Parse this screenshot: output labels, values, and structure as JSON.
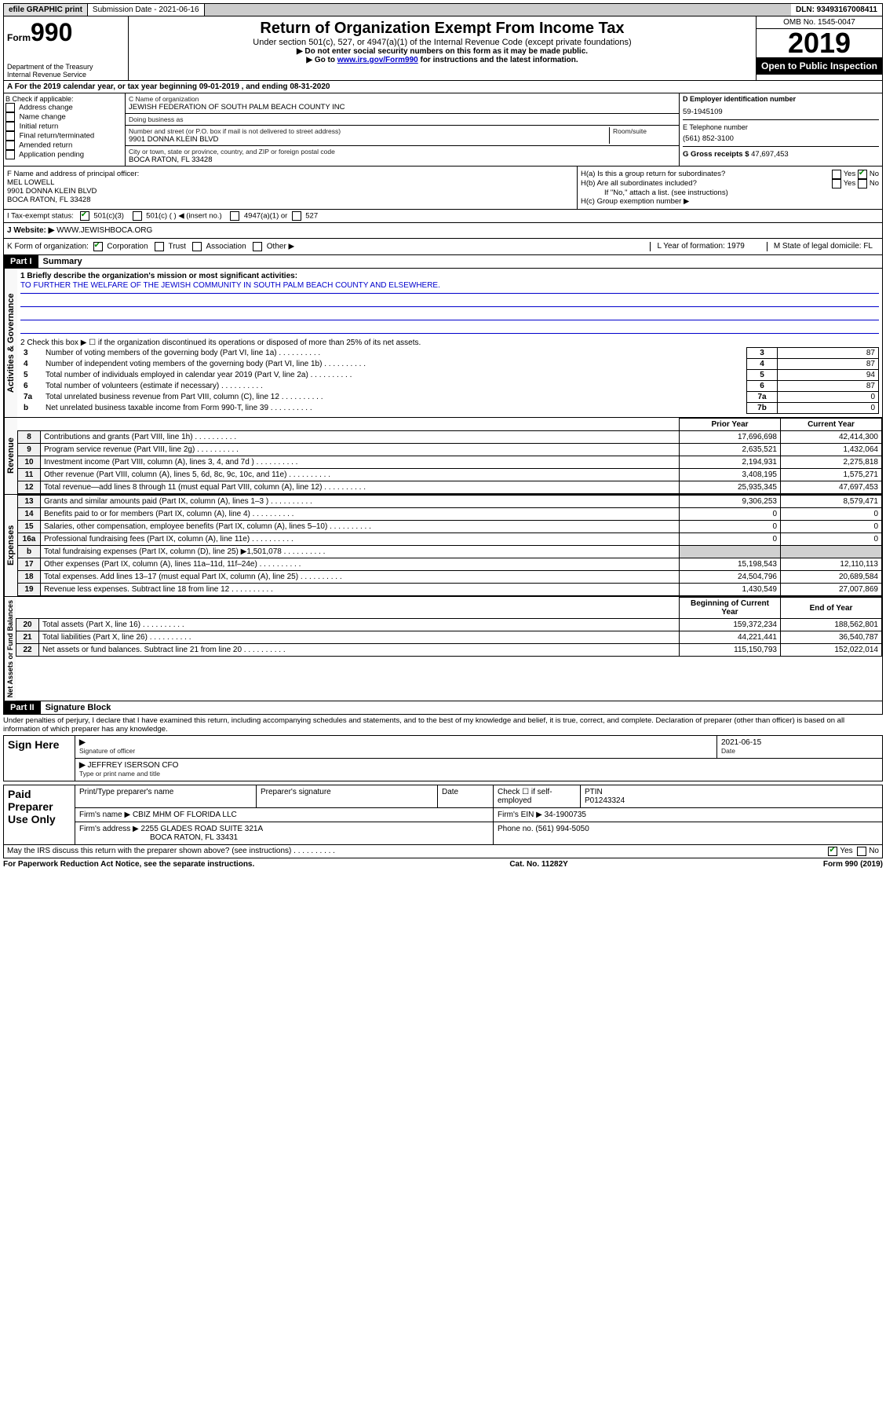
{
  "topbar": {
    "efile": "efile GRAPHIC print",
    "submission": "Submission Date - 2021-06-16",
    "dln": "DLN: 93493167008411"
  },
  "header": {
    "form_prefix": "Form",
    "form_number": "990",
    "dept": "Department of the Treasury\nInternal Revenue Service",
    "title": "Return of Organization Exempt From Income Tax",
    "sub": "Under section 501(c), 527, or 4947(a)(1) of the Internal Revenue Code (except private foundations)",
    "note1": "▶ Do not enter social security numbers on this form as it may be made public.",
    "note2_pre": "▶ Go to ",
    "note2_link": "www.irs.gov/Form990",
    "note2_post": " for instructions and the latest information.",
    "omb": "OMB No. 1545-0047",
    "year": "2019",
    "inspection": "Open to Public Inspection"
  },
  "section_a": "A For the 2019 calendar year, or tax year beginning 09-01-2019   , and ending 08-31-2020",
  "box_b": {
    "label": "B Check if applicable:",
    "items": [
      "Address change",
      "Name change",
      "Initial return",
      "Final return/terminated",
      "Amended return",
      "Application pending"
    ]
  },
  "box_c": {
    "name_label": "C Name of organization",
    "name": "JEWISH FEDERATION OF SOUTH PALM BEACH COUNTY INC",
    "dba_label": "Doing business as",
    "dba": "",
    "street_label": "Number and street (or P.O. box if mail is not delivered to street address)",
    "room_label": "Room/suite",
    "street": "9901 DONNA KLEIN BLVD",
    "city_label": "City or town, state or province, country, and ZIP or foreign postal code",
    "city": "BOCA RATON, FL  33428"
  },
  "box_d": {
    "label": "D Employer identification number",
    "value": "59-1945109"
  },
  "box_e": {
    "label": "E Telephone number",
    "value": "(561) 852-3100"
  },
  "box_g": {
    "label": "G Gross receipts $",
    "value": "47,697,453"
  },
  "box_f": {
    "label": "F  Name and address of principal officer:",
    "name": "MEL LOWELL",
    "street": "9901 DONNA KLEIN BLVD",
    "city": "BOCA RATON, FL  33428"
  },
  "box_h": {
    "a": "H(a)  Is this a group return for subordinates?",
    "a_yes": "Yes",
    "a_no": "No",
    "b": "H(b)  Are all subordinates included?",
    "b_note": "If \"No,\" attach a list. (see instructions)",
    "c": "H(c)  Group exemption number ▶"
  },
  "tax_status": {
    "label": "I   Tax-exempt status:",
    "opt1": "501(c)(3)",
    "opt2": "501(c) (  ) ◀ (insert no.)",
    "opt3": "4947(a)(1) or",
    "opt4": "527"
  },
  "website": {
    "label": "J   Website: ▶",
    "value": "WWW.JEWISHBOCA.ORG"
  },
  "line_k": {
    "label": "K Form of organization:",
    "opts": [
      "Corporation",
      "Trust",
      "Association",
      "Other ▶"
    ],
    "l": "L Year of formation: 1979",
    "m": "M State of legal domicile: FL"
  },
  "part1": {
    "header": "Part I",
    "title": "Summary",
    "q1": "1  Briefly describe the organization's mission or most significant activities:",
    "mission": "TO FURTHER THE WELFARE OF THE JEWISH COMMUNITY IN SOUTH PALM BEACH COUNTY AND ELSEWHERE.",
    "q2": "2   Check this box ▶ ☐  if the organization discontinued its operations or disposed of more than 25% of its net assets.",
    "rows_gov": [
      {
        "n": "3",
        "t": "Number of voting members of the governing body (Part VI, line 1a)",
        "k": "3",
        "v": "87"
      },
      {
        "n": "4",
        "t": "Number of independent voting members of the governing body (Part VI, line 1b)",
        "k": "4",
        "v": "87"
      },
      {
        "n": "5",
        "t": "Total number of individuals employed in calendar year 2019 (Part V, line 2a)",
        "k": "5",
        "v": "94"
      },
      {
        "n": "6",
        "t": "Total number of volunteers (estimate if necessary)",
        "k": "6",
        "v": "87"
      },
      {
        "n": "7a",
        "t": "Total unrelated business revenue from Part VIII, column (C), line 12",
        "k": "7a",
        "v": "0"
      },
      {
        "n": "b",
        "t": "Net unrelated business taxable income from Form 990-T, line 39",
        "k": "7b",
        "v": "0"
      }
    ],
    "prior_year": "Prior Year",
    "current_year": "Current Year",
    "rows_rev": [
      {
        "n": "8",
        "t": "Contributions and grants (Part VIII, line 1h)",
        "p": "17,696,698",
        "c": "42,414,300"
      },
      {
        "n": "9",
        "t": "Program service revenue (Part VIII, line 2g)",
        "p": "2,635,521",
        "c": "1,432,064"
      },
      {
        "n": "10",
        "t": "Investment income (Part VIII, column (A), lines 3, 4, and 7d )",
        "p": "2,194,931",
        "c": "2,275,818"
      },
      {
        "n": "11",
        "t": "Other revenue (Part VIII, column (A), lines 5, 6d, 8c, 9c, 10c, and 11e)",
        "p": "3,408,195",
        "c": "1,575,271"
      },
      {
        "n": "12",
        "t": "Total revenue—add lines 8 through 11 (must equal Part VIII, column (A), line 12)",
        "p": "25,935,345",
        "c": "47,697,453"
      }
    ],
    "rows_exp": [
      {
        "n": "13",
        "t": "Grants and similar amounts paid (Part IX, column (A), lines 1–3 )",
        "p": "9,306,253",
        "c": "8,579,471"
      },
      {
        "n": "14",
        "t": "Benefits paid to or for members (Part IX, column (A), line 4)",
        "p": "0",
        "c": "0"
      },
      {
        "n": "15",
        "t": "Salaries, other compensation, employee benefits (Part IX, column (A), lines 5–10)",
        "p": "0",
        "c": "0"
      },
      {
        "n": "16a",
        "t": "Professional fundraising fees (Part IX, column (A), line 11e)",
        "p": "0",
        "c": "0"
      },
      {
        "n": "b",
        "t": "Total fundraising expenses (Part IX, column (D), line 25) ▶1,501,078",
        "p": "",
        "c": "",
        "grey": true
      },
      {
        "n": "17",
        "t": "Other expenses (Part IX, column (A), lines 11a–11d, 11f–24e)",
        "p": "15,198,543",
        "c": "12,110,113"
      },
      {
        "n": "18",
        "t": "Total expenses. Add lines 13–17 (must equal Part IX, column (A), line 25)",
        "p": "24,504,796",
        "c": "20,689,584"
      },
      {
        "n": "19",
        "t": "Revenue less expenses. Subtract line 18 from line 12",
        "p": "1,430,549",
        "c": "27,007,869"
      }
    ],
    "begin_year": "Beginning of Current Year",
    "end_year": "End of Year",
    "rows_net": [
      {
        "n": "20",
        "t": "Total assets (Part X, line 16)",
        "p": "159,372,234",
        "c": "188,562,801"
      },
      {
        "n": "21",
        "t": "Total liabilities (Part X, line 26)",
        "p": "44,221,441",
        "c": "36,540,787"
      },
      {
        "n": "22",
        "t": "Net assets or fund balances. Subtract line 21 from line 20",
        "p": "115,150,793",
        "c": "152,022,014"
      }
    ],
    "v_gov": "Activities & Governance",
    "v_rev": "Revenue",
    "v_exp": "Expenses",
    "v_net": "Net Assets or Fund Balances"
  },
  "part2": {
    "header": "Part II",
    "title": "Signature Block",
    "penalties": "Under penalties of perjury, I declare that I have examined this return, including accompanying schedules and statements, and to the best of my knowledge and belief, it is true, correct, and complete. Declaration of preparer (other than officer) is based on all information of which preparer has any knowledge.",
    "sign_here": "Sign Here",
    "sig_officer_label": "Signature of officer",
    "sig_date": "2021-06-15",
    "date_label": "Date",
    "officer_name": "JEFFREY ISERSON  CFO",
    "officer_name_label": "Type or print name and title",
    "paid": "Paid Preparer Use Only",
    "prep_name_label": "Print/Type preparer's name",
    "prep_sig_label": "Preparer's signature",
    "prep_date_label": "Date",
    "self_emp": "Check ☐ if self-employed",
    "ptin_label": "PTIN",
    "ptin": "P01243324",
    "firm_name_label": "Firm's name    ▶",
    "firm_name": "CBIZ MHM OF FLORIDA LLC",
    "firm_ein_label": "Firm's EIN ▶",
    "firm_ein": "34-1900735",
    "firm_addr_label": "Firm's address ▶",
    "firm_addr": "2255 GLADES ROAD SUITE 321A",
    "firm_city": "BOCA RATON, FL  33431",
    "phone_label": "Phone no.",
    "phone": "(561) 994-5050",
    "discuss": "May the IRS discuss this return with the preparer shown above? (see instructions)",
    "yes": "Yes",
    "no": "No"
  },
  "footer": {
    "left": "For Paperwork Reduction Act Notice, see the separate instructions.",
    "center": "Cat. No. 11282Y",
    "right": "Form 990 (2019)"
  }
}
